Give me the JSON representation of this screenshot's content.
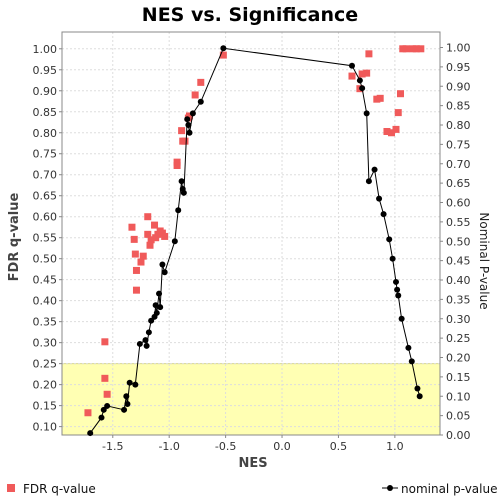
{
  "chart_data": {
    "type": "scatter",
    "title": "NES vs. Significance",
    "xlabel": "NES",
    "ylabel": "FDR q-value",
    "ylabel_right": "Nominal P-value",
    "xlim": [
      -1.95,
      1.4
    ],
    "ylim": [
      0.08,
      1.04
    ],
    "ylim_right": [
      0.0,
      1.04
    ],
    "xticks": [
      "-1.5",
      "-1.0",
      "-0.5",
      "0.0",
      "0.5",
      "1.0"
    ],
    "yticks_left": [
      "0.10",
      "0.15",
      "0.20",
      "0.25",
      "0.30",
      "0.35",
      "0.40",
      "0.45",
      "0.50",
      "0.55",
      "0.60",
      "0.65",
      "0.70",
      "0.75",
      "0.80",
      "0.85",
      "0.90",
      "0.95",
      "1.00"
    ],
    "yticks_right": [
      "0.00",
      "0.05",
      "0.10",
      "0.15",
      "0.20",
      "0.25",
      "0.30",
      "0.35",
      "0.40",
      "0.45",
      "0.50",
      "0.55",
      "0.60",
      "0.65",
      "0.70",
      "0.75",
      "0.80",
      "0.85",
      "0.90",
      "0.95",
      "1.00"
    ],
    "highlight_band": {
      "axis": "left",
      "from": 0.08,
      "to": 0.25,
      "color": "#ffffb3"
    },
    "grid": true,
    "legend_position": "bottom",
    "series": [
      {
        "name": "FDR q-value",
        "style": "square",
        "color": "#f05a5a",
        "points": [
          [
            -1.72,
            0.133
          ],
          [
            -1.57,
            0.302
          ],
          [
            -1.57,
            0.215
          ],
          [
            -1.55,
            0.177
          ],
          [
            -1.33,
            0.575
          ],
          [
            -1.31,
            0.546
          ],
          [
            -1.3,
            0.511
          ],
          [
            -1.29,
            0.472
          ],
          [
            -1.29,
            0.425
          ],
          [
            -1.25,
            0.492
          ],
          [
            -1.23,
            0.506
          ],
          [
            -1.19,
            0.6
          ],
          [
            -1.19,
            0.558
          ],
          [
            -1.17,
            0.532
          ],
          [
            -1.16,
            0.545
          ],
          [
            -1.13,
            0.58
          ],
          [
            -1.12,
            0.55
          ],
          [
            -1.1,
            0.558
          ],
          [
            -1.08,
            0.566
          ],
          [
            -1.06,
            0.561
          ],
          [
            -1.04,
            0.553
          ],
          [
            -0.93,
            0.73
          ],
          [
            -0.93,
            0.722
          ],
          [
            -0.89,
            0.805
          ],
          [
            -0.88,
            0.78
          ],
          [
            -0.86,
            0.78
          ],
          [
            -0.83,
            0.835
          ],
          [
            -0.82,
            0.84
          ],
          [
            -0.77,
            0.89
          ],
          [
            -0.72,
            0.92
          ],
          [
            -0.52,
            0.985
          ],
          [
            0.62,
            0.935
          ],
          [
            0.69,
            0.905
          ],
          [
            0.71,
            0.94
          ],
          [
            0.75,
            0.942
          ],
          [
            0.77,
            0.988
          ],
          [
            0.84,
            0.88
          ],
          [
            0.87,
            0.882
          ],
          [
            0.93,
            0.803
          ],
          [
            0.97,
            0.8
          ],
          [
            1.01,
            0.808
          ],
          [
            1.03,
            0.848
          ],
          [
            1.05,
            0.893
          ],
          [
            1.07,
            1.0
          ],
          [
            1.1,
            1.0
          ],
          [
            1.16,
            1.0
          ],
          [
            1.19,
            1.0
          ],
          [
            1.23,
            1.0
          ]
        ]
      },
      {
        "name": "nominal p-value",
        "style": "dot-line",
        "color": "#000000",
        "axis": "right",
        "points": [
          [
            -1.7,
            0.005
          ],
          [
            -1.6,
            0.045
          ],
          [
            -1.58,
            0.065
          ],
          [
            -1.55,
            0.075
          ],
          [
            -1.4,
            0.065
          ],
          [
            -1.38,
            0.1
          ],
          [
            -1.37,
            0.08
          ],
          [
            -1.35,
            0.135
          ],
          [
            -1.3,
            0.13
          ],
          [
            -1.26,
            0.235
          ],
          [
            -1.21,
            0.245
          ],
          [
            -1.2,
            0.23
          ],
          [
            -1.18,
            0.265
          ],
          [
            -1.16,
            0.295
          ],
          [
            -1.13,
            0.305
          ],
          [
            -1.12,
            0.335
          ],
          [
            -1.11,
            0.315
          ],
          [
            -1.09,
            0.365
          ],
          [
            -1.08,
            0.33
          ],
          [
            -1.06,
            0.44
          ],
          [
            -1.04,
            0.42
          ],
          [
            -0.95,
            0.5
          ],
          [
            -0.92,
            0.58
          ],
          [
            -0.89,
            0.655
          ],
          [
            -0.88,
            0.635
          ],
          [
            -0.87,
            0.625
          ],
          [
            -0.84,
            0.815
          ],
          [
            -0.83,
            0.8
          ],
          [
            -0.82,
            0.78
          ],
          [
            -0.79,
            0.83
          ],
          [
            -0.72,
            0.86
          ],
          [
            -0.52,
            0.998
          ],
          [
            0.62,
            0.953
          ],
          [
            0.69,
            0.915
          ],
          [
            0.71,
            0.895
          ],
          [
            0.75,
            0.83
          ],
          [
            0.77,
            0.655
          ],
          [
            0.82,
            0.685
          ],
          [
            0.86,
            0.61
          ],
          [
            0.9,
            0.57
          ],
          [
            0.95,
            0.505
          ],
          [
            0.98,
            0.455
          ],
          [
            1.01,
            0.395
          ],
          [
            1.02,
            0.375
          ],
          [
            1.03,
            0.36
          ],
          [
            1.06,
            0.3
          ],
          [
            1.12,
            0.225
          ],
          [
            1.15,
            0.19
          ],
          [
            1.2,
            0.12
          ],
          [
            1.22,
            0.1
          ]
        ]
      }
    ]
  }
}
